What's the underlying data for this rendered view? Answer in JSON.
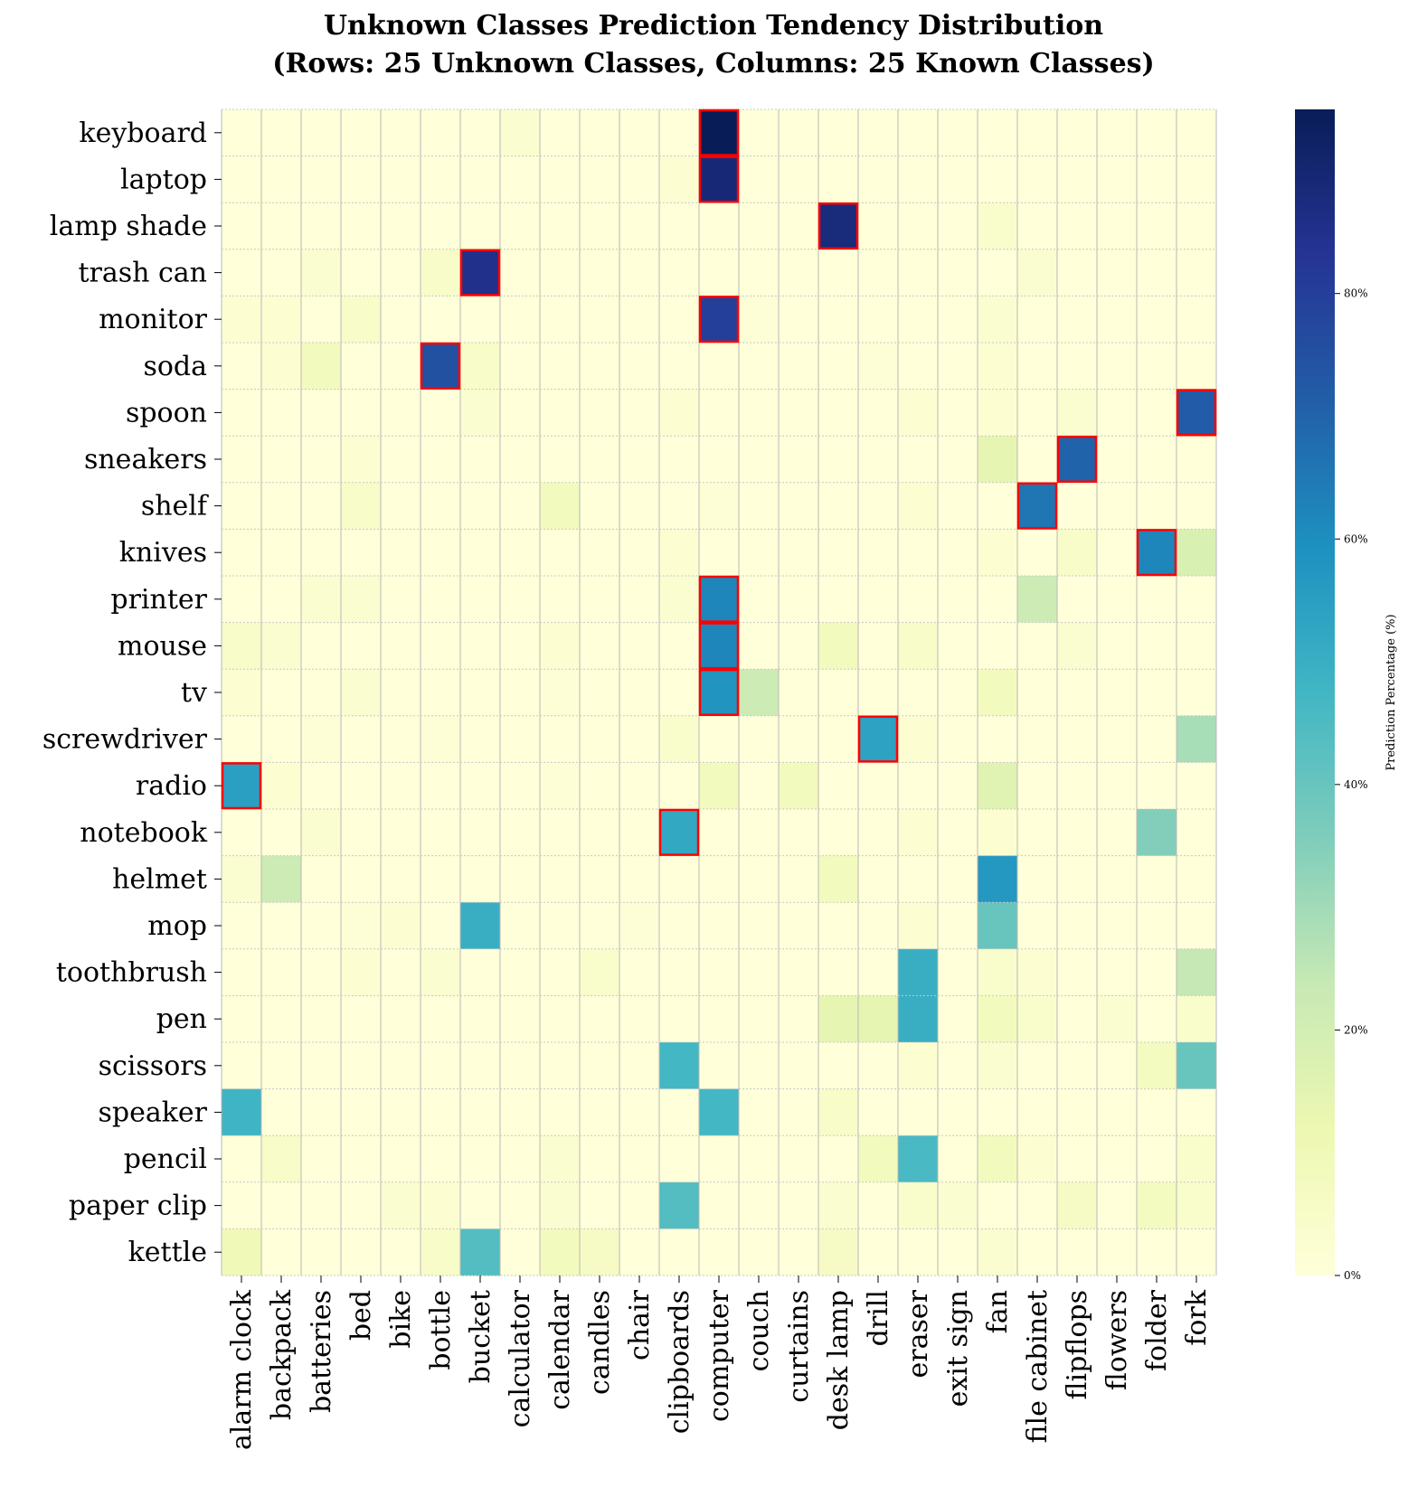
{
  "chart_data": {
    "type": "heatmap",
    "title": "Unknown Classes Prediction Tendency Distribution",
    "subtitle": "(Rows: 25 Unknown Classes, Columns: 25 Known Classes)",
    "rows": [
      "keyboard",
      "laptop",
      "lamp shade",
      "trash can",
      "monitor",
      "soda",
      "spoon",
      "sneakers",
      "shelf",
      "knives",
      "printer",
      "mouse",
      "tv",
      "screwdriver",
      "radio",
      "notebook",
      "helmet",
      "mop",
      "toothbrush",
      "pen",
      "scissors",
      "speaker",
      "pencil",
      "paper clip",
      "kettle"
    ],
    "columns": [
      "alarm clock",
      "backpack",
      "batteries",
      "bed",
      "bike",
      "bottle",
      "bucket",
      "calculator",
      "calendar",
      "candles",
      "chair",
      "clipboards",
      "computer",
      "couch",
      "curtains",
      "desk lamp",
      "drill",
      "eraser",
      "exit sign",
      "fan",
      "file cabinet",
      "flipflops",
      "flowers",
      "folder",
      "fork"
    ],
    "values": [
      [
        0,
        0,
        0,
        0,
        0,
        0,
        0,
        3,
        0,
        0,
        0,
        0,
        95,
        0,
        0,
        0,
        0,
        0,
        0,
        0,
        0,
        0,
        0,
        0,
        0
      ],
      [
        0,
        0,
        0,
        0,
        0,
        0,
        0,
        0,
        0,
        0,
        0,
        2,
        89,
        0,
        0,
        0,
        0,
        0,
        0,
        0,
        0,
        0,
        0,
        0,
        0
      ],
      [
        0,
        0,
        0,
        0,
        0,
        0,
        0,
        0,
        0,
        0,
        0,
        0,
        0,
        0,
        0,
        88,
        0,
        0,
        0,
        4,
        0,
        0,
        0,
        0,
        0
      ],
      [
        0,
        0,
        3,
        0,
        0,
        5,
        85,
        0,
        0,
        0,
        0,
        0,
        0,
        0,
        0,
        0,
        0,
        0,
        0,
        0,
        3,
        0,
        0,
        0,
        0
      ],
      [
        2,
        2,
        0,
        5,
        0,
        0,
        0,
        0,
        0,
        0,
        0,
        0,
        80,
        1,
        0,
        0,
        0,
        0,
        0,
        3,
        0,
        0,
        0,
        0,
        0
      ],
      [
        0,
        2,
        8,
        0,
        0,
        75,
        5,
        0,
        0,
        0,
        0,
        0,
        0,
        0,
        0,
        0,
        1,
        0,
        0,
        2,
        0,
        0,
        0,
        0,
        0
      ],
      [
        0,
        0,
        0,
        0,
        0,
        0,
        3,
        0,
        0,
        0,
        0,
        2,
        0,
        0,
        0,
        0,
        0,
        2,
        0,
        2,
        0,
        3,
        0,
        0,
        72
      ],
      [
        0,
        0,
        0,
        2,
        0,
        0,
        0,
        0,
        0,
        0,
        0,
        0,
        0,
        0,
        0,
        0,
        0,
        0,
        0,
        14,
        0,
        70,
        0,
        0,
        0
      ],
      [
        0,
        0,
        0,
        5,
        0,
        0,
        0,
        0,
        8,
        0,
        0,
        0,
        1,
        0,
        0,
        0,
        0,
        2,
        0,
        0,
        66,
        0,
        0,
        0,
        0
      ],
      [
        0,
        0,
        0,
        0,
        0,
        0,
        0,
        0,
        0,
        0,
        0,
        2,
        0,
        0,
        0,
        0,
        0,
        0,
        0,
        2,
        0,
        5,
        0,
        62,
        18
      ],
      [
        0,
        0,
        3,
        3,
        0,
        0,
        0,
        0,
        0,
        0,
        0,
        3,
        62,
        0,
        0,
        0,
        0,
        0,
        0,
        0,
        22,
        0,
        0,
        0,
        0
      ],
      [
        5,
        3,
        0,
        0,
        0,
        0,
        0,
        0,
        2,
        0,
        0,
        0,
        62,
        0,
        0,
        8,
        0,
        5,
        0,
        0,
        0,
        3,
        0,
        0,
        0
      ],
      [
        2,
        0,
        0,
        3,
        0,
        0,
        0,
        0,
        1,
        0,
        0,
        0,
        58,
        22,
        0,
        0,
        0,
        0,
        0,
        8,
        0,
        0,
        0,
        0,
        0
      ],
      [
        0,
        0,
        1,
        0,
        0,
        1,
        0,
        0,
        0,
        0,
        0,
        4,
        0,
        0,
        0,
        0,
        54,
        2,
        0,
        0,
        0,
        0,
        0,
        0,
        29
      ],
      [
        55,
        2,
        0,
        0,
        0,
        0,
        0,
        0,
        1,
        0,
        0,
        0,
        8,
        0,
        8,
        0,
        0,
        0,
        0,
        16,
        0,
        0,
        0,
        0,
        0
      ],
      [
        0,
        0,
        3,
        0,
        0,
        0,
        0,
        0,
        0,
        0,
        0,
        52,
        0,
        0,
        0,
        0,
        0,
        2,
        0,
        2,
        0,
        0,
        0,
        35,
        0
      ],
      [
        3,
        22,
        0,
        0,
        0,
        0,
        0,
        0,
        0,
        0,
        0,
        0,
        0,
        0,
        0,
        8,
        0,
        0,
        0,
        57,
        0,
        0,
        0,
        0,
        0
      ],
      [
        0,
        0,
        0,
        1,
        2,
        0,
        50,
        0,
        0,
        0,
        1,
        0,
        0,
        0,
        0,
        0,
        0,
        2,
        0,
        40,
        0,
        0,
        0,
        0,
        0
      ],
      [
        0,
        0,
        0,
        2,
        0,
        3,
        0,
        0,
        0,
        4,
        0,
        0,
        0,
        0,
        0,
        0,
        0,
        50,
        0,
        4,
        2,
        0,
        0,
        0,
        24
      ],
      [
        0,
        0,
        0,
        0,
        0,
        0,
        0,
        0,
        0,
        0,
        0,
        0,
        0,
        0,
        0,
        14,
        14,
        50,
        0,
        8,
        4,
        0,
        3,
        0,
        4
      ],
      [
        0,
        0,
        0,
        0,
        0,
        0,
        0,
        0,
        0,
        0,
        0,
        47,
        0,
        0,
        0,
        0,
        0,
        2,
        0,
        3,
        0,
        0,
        0,
        7,
        40
      ],
      [
        48,
        0,
        0,
        0,
        0,
        0,
        0,
        0,
        0,
        0,
        0,
        0,
        47,
        0,
        0,
        5,
        0,
        0,
        0,
        0,
        0,
        0,
        0,
        0,
        0
      ],
      [
        0,
        5,
        0,
        0,
        0,
        0,
        0,
        0,
        3,
        0,
        0,
        0,
        0,
        0,
        0,
        0,
        8,
        46,
        0,
        8,
        2,
        0,
        0,
        0,
        4
      ],
      [
        0,
        0,
        0,
        0,
        3,
        2,
        0,
        0,
        3,
        0,
        0,
        44,
        0,
        0,
        0,
        3,
        0,
        4,
        3,
        0,
        0,
        6,
        0,
        7,
        4
      ],
      [
        10,
        0,
        0,
        0,
        0,
        5,
        44,
        0,
        8,
        6,
        0,
        0,
        0,
        0,
        0,
        6,
        0,
        0,
        0,
        3,
        0,
        0,
        0,
        0,
        0
      ]
    ],
    "highlighted_cells": [
      [
        0,
        12
      ],
      [
        1,
        12
      ],
      [
        2,
        15
      ],
      [
        3,
        6
      ],
      [
        4,
        12
      ],
      [
        5,
        5
      ],
      [
        6,
        24
      ],
      [
        7,
        21
      ],
      [
        8,
        20
      ],
      [
        9,
        23
      ],
      [
        10,
        12
      ],
      [
        11,
        12
      ],
      [
        12,
        12
      ],
      [
        13,
        16
      ],
      [
        14,
        0
      ],
      [
        15,
        11
      ]
    ],
    "colormap": "YlGnBu",
    "vmin": 0,
    "vmax": 95,
    "colorbar": {
      "label": "Prediction Percentage (%)",
      "ticks": [
        0,
        20,
        40,
        60,
        80
      ],
      "tick_labels": [
        "0%",
        "20%",
        "40%",
        "60%",
        "80%"
      ]
    },
    "highlight_color": "#ff0000"
  }
}
